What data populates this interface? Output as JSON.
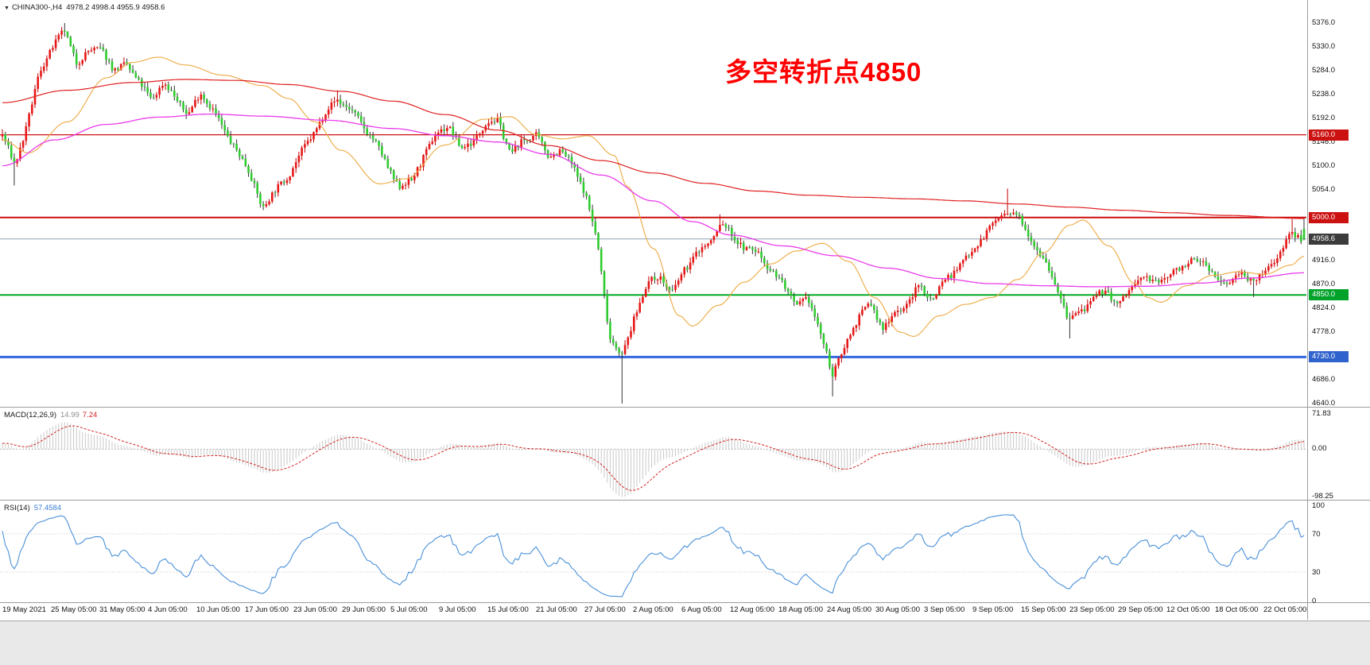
{
  "header": {
    "symbol_with_tf": "CHINA300-,H4",
    "ohlc": "4978.2 4998.4 4955.9 4958.6",
    "dropdown_icon": "▼"
  },
  "annotation": {
    "text": "多空转折点4850",
    "color": "#ff0000"
  },
  "chart_data": {
    "type": "candlestick",
    "symbol": "CHINA300-",
    "timeframe": "H4",
    "current_ohlc": {
      "open": 4978.2,
      "high": 4998.4,
      "low": 4955.9,
      "close": 4958.6
    },
    "current_price": 4958.6,
    "y_axis": {
      "min": 4640,
      "max": 5376,
      "tick_step": 46
    },
    "visible_scale_labels": [
      "5376.0",
      "5330.0",
      "5284.0",
      "5238.0",
      "5192.0",
      "5146.0",
      "5100.0",
      "5054.0",
      "4916.0",
      "4870.0",
      "4824.0",
      "4778.0",
      "4686.0",
      "4640.0"
    ],
    "price_tags": [
      {
        "value": "5160.0",
        "price": 5160,
        "color": "#cc1111"
      },
      {
        "value": "5000.0",
        "price": 5000,
        "color": "#cc1111"
      },
      {
        "value": "4958.6",
        "price": 4958.6,
        "color": "#3c3c3c",
        "current": true
      },
      {
        "value": "4850.0",
        "price": 4850,
        "color": "#00a22a"
      },
      {
        "value": "4730.0",
        "price": 4730,
        "color": "#2f62cc"
      }
    ],
    "horizontal_lines": [
      {
        "price": 5160,
        "color": "#cc1111",
        "width": 1.2
      },
      {
        "price": 5000,
        "color": "#cc1111",
        "width": 2
      },
      {
        "price": 4850,
        "color": "#00aa22",
        "width": 2
      },
      {
        "price": 4730,
        "color": "#3366dd",
        "width": 3
      },
      {
        "price": 4958.6,
        "color": "#8aa0b4",
        "width": 1
      }
    ],
    "x_axis_labels": [
      "19 May 2021",
      "25 May 05:00",
      "31 May 05:00",
      "4 Jun 05:00",
      "10 Jun 05:00",
      "17 Jun 05:00",
      "23 Jun 05:00",
      "29 Jun 05:00",
      "5 Jul 05:00",
      "9 Jul 05:00",
      "15 Jul 05:00",
      "21 Jul 05:00",
      "27 Jul 05:00",
      "2 Aug 05:00",
      "6 Aug 05:00",
      "12 Aug 05:00",
      "18 Aug 05:00",
      "24 Aug 05:00",
      "30 Aug 05:00",
      "3 Sep 05:00",
      "9 Sep 05:00",
      "15 Sep 05:00",
      "23 Sep 05:00",
      "29 Sep 05:00",
      "12 Oct 05:00",
      "18 Oct 05:00",
      "22 Oct 05:00"
    ],
    "candles": {
      "count": 440,
      "lead_in": 60,
      "seed": 7,
      "noise": 6,
      "total_days": 105,
      "closes_daily": [
        5160,
        5100,
        5180,
        5280,
        5330,
        5360,
        5300,
        5320,
        5330,
        5280,
        5300,
        5260,
        5230,
        5260,
        5230,
        5200,
        5240,
        5210,
        5160,
        5130,
        5080,
        5020,
        5050,
        5080,
        5120,
        5160,
        5200,
        5230,
        5210,
        5180,
        5150,
        5100,
        5060,
        5070,
        5120,
        5160,
        5180,
        5130,
        5150,
        5180,
        5190,
        5120,
        5150,
        5160,
        5120,
        5130,
        5100,
        5050,
        4950,
        4770,
        4730,
        4810,
        4870,
        4890,
        4850,
        4900,
        4930,
        4950,
        4990,
        4960,
        4940,
        4930,
        4900,
        4870,
        4830,
        4840,
        4780,
        4690,
        4760,
        4800,
        4840,
        4780,
        4820,
        4830,
        4870,
        4840,
        4880,
        4900,
        4930,
        4960,
        4990,
        5010,
        5000,
        4960,
        4920,
        4870,
        4800,
        4820,
        4840,
        4860,
        4830,
        4860,
        4890,
        4870,
        4890,
        4900,
        4920,
        4910,
        4880,
        4870,
        4900,
        4870,
        4900,
        4930,
        4970,
        4958.6
      ],
      "wick_pins": [
        {
          "day": 1,
          "low": 5062
        },
        {
          "day": 5,
          "high": 5376
        },
        {
          "day": 27,
          "high": 5246
        },
        {
          "day": 50,
          "low": 4640
        },
        {
          "day": 58,
          "high": 5006
        },
        {
          "day": 67,
          "low": 4654
        },
        {
          "day": 81,
          "high": 5056
        },
        {
          "day": 86,
          "low": 4766
        },
        {
          "day": 101,
          "low": 4846
        },
        {
          "day": 104,
          "high": 4997
        }
      ],
      "up_color": "#e81717",
      "down_color": "#2ecc2e",
      "up_wick": "#c00000",
      "down_wick": "#333333"
    },
    "moving_averages": [
      {
        "name": "ma-fast",
        "color": "#eda940",
        "width": 1.1,
        "anchors": [
          [
            0,
            5150
          ],
          [
            0.02,
            5125
          ],
          [
            0.05,
            5185
          ],
          [
            0.08,
            5270
          ],
          [
            0.1,
            5300
          ],
          [
            0.12,
            5310
          ],
          [
            0.14,
            5295
          ],
          [
            0.17,
            5275
          ],
          [
            0.2,
            5255
          ],
          [
            0.22,
            5230
          ],
          [
            0.24,
            5185
          ],
          [
            0.26,
            5130
          ],
          [
            0.29,
            5065
          ],
          [
            0.31,
            5075
          ],
          [
            0.34,
            5140
          ],
          [
            0.37,
            5190
          ],
          [
            0.39,
            5195
          ],
          [
            0.41,
            5160
          ],
          [
            0.43,
            5152
          ],
          [
            0.45,
            5158
          ],
          [
            0.47,
            5120
          ],
          [
            0.48,
            5060
          ],
          [
            0.5,
            4940
          ],
          [
            0.52,
            4810
          ],
          [
            0.53,
            4790
          ],
          [
            0.55,
            4830
          ],
          [
            0.57,
            4875
          ],
          [
            0.59,
            4910
          ],
          [
            0.61,
            4935
          ],
          [
            0.63,
            4950
          ],
          [
            0.65,
            4915
          ],
          [
            0.67,
            4845
          ],
          [
            0.69,
            4778
          ],
          [
            0.7,
            4770
          ],
          [
            0.72,
            4810
          ],
          [
            0.74,
            4832
          ],
          [
            0.76,
            4845
          ],
          [
            0.78,
            4880
          ],
          [
            0.8,
            4932
          ],
          [
            0.82,
            4985
          ],
          [
            0.83,
            4995
          ],
          [
            0.85,
            4945
          ],
          [
            0.87,
            4872
          ],
          [
            0.88,
            4845
          ],
          [
            0.89,
            4836
          ],
          [
            0.91,
            4868
          ],
          [
            0.93,
            4888
          ],
          [
            0.95,
            4895
          ],
          [
            0.97,
            4890
          ],
          [
            0.99,
            4908
          ],
          [
            1,
            4925
          ]
        ]
      },
      {
        "name": "ma-mid",
        "color": "#ea3bea",
        "width": 1.3,
        "anchors": [
          [
            0,
            5100
          ],
          [
            0.04,
            5150
          ],
          [
            0.08,
            5180
          ],
          [
            0.12,
            5194
          ],
          [
            0.16,
            5200
          ],
          [
            0.2,
            5196
          ],
          [
            0.25,
            5188
          ],
          [
            0.3,
            5172
          ],
          [
            0.34,
            5158
          ],
          [
            0.38,
            5146
          ],
          [
            0.42,
            5122
          ],
          [
            0.46,
            5082
          ],
          [
            0.5,
            5032
          ],
          [
            0.53,
            4992
          ],
          [
            0.56,
            4966
          ],
          [
            0.6,
            4945
          ],
          [
            0.64,
            4926
          ],
          [
            0.68,
            4902
          ],
          [
            0.72,
            4882
          ],
          [
            0.76,
            4872
          ],
          [
            0.8,
            4868
          ],
          [
            0.84,
            4866
          ],
          [
            0.88,
            4867
          ],
          [
            0.92,
            4873
          ],
          [
            0.96,
            4883
          ],
          [
            1,
            4893
          ]
        ]
      },
      {
        "name": "ma-slow",
        "color": "#e02020",
        "width": 1.2,
        "anchors": [
          [
            0,
            5222
          ],
          [
            0.05,
            5246
          ],
          [
            0.1,
            5261
          ],
          [
            0.14,
            5267
          ],
          [
            0.18,
            5265
          ],
          [
            0.22,
            5257
          ],
          [
            0.26,
            5244
          ],
          [
            0.3,
            5225
          ],
          [
            0.34,
            5199
          ],
          [
            0.38,
            5169
          ],
          [
            0.42,
            5139
          ],
          [
            0.46,
            5110
          ],
          [
            0.5,
            5086
          ],
          [
            0.54,
            5066
          ],
          [
            0.58,
            5051
          ],
          [
            0.62,
            5043
          ],
          [
            0.66,
            5039
          ],
          [
            0.7,
            5036
          ],
          [
            0.74,
            5032
          ],
          [
            0.78,
            5026
          ],
          [
            0.82,
            5020
          ],
          [
            0.86,
            5014
          ],
          [
            0.9,
            5009
          ],
          [
            0.94,
            5004
          ],
          [
            1,
            4998
          ]
        ]
      }
    ],
    "macd": {
      "label": "MACD(12,26,9)",
      "value_main": "14.99",
      "value_signal": "7.24",
      "fast": 12,
      "slow": 26,
      "signal": 9,
      "axis_labels": [
        "71.83",
        "0.00",
        "-98.25"
      ],
      "axis_max": 71.83,
      "axis_min": -98.25,
      "hist_color": "#c9c9c9",
      "signal_color": "#d42222"
    },
    "rsi": {
      "label": "RSI(14)",
      "value": "57.4584",
      "period": 14,
      "axis_labels": [
        "100",
        "70",
        "30",
        "0"
      ],
      "levels": [
        70,
        30
      ],
      "color": "#4a90d9"
    }
  }
}
